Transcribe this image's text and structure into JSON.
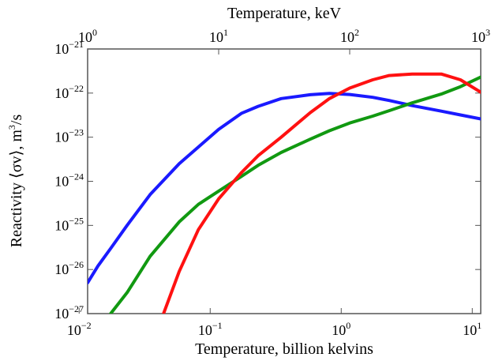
{
  "chart_data": {
    "type": "line",
    "x_top_label": "Temperature, keV",
    "x_bottom_label": "Temperature, billion kelvins",
    "ylabel_prefix": "Reactivity ⟨σv⟩, m",
    "ylabel_exp": "3",
    "ylabel_suffix": "/s",
    "x_scale": "log",
    "y_scale": "log",
    "xlim_keV": [
      1,
      1000
    ],
    "ylim": [
      1e-27,
      1e-21
    ],
    "grid": false,
    "x_top_ticks": [
      {
        "value": 1,
        "base": "10",
        "exp": "0"
      },
      {
        "value": 10,
        "base": "10",
        "exp": "1"
      },
      {
        "value": 100,
        "base": "10",
        "exp": "2"
      },
      {
        "value": 1000,
        "base": "10",
        "exp": "3"
      }
    ],
    "x_bottom_ticks": [
      {
        "value": 0.01,
        "base": "10",
        "exp": "−2"
      },
      {
        "value": 0.1,
        "base": "10",
        "exp": "−1"
      },
      {
        "value": 1,
        "base": "10",
        "exp": "0"
      },
      {
        "value": 10,
        "base": "10",
        "exp": "1"
      }
    ],
    "y_ticks": [
      {
        "value": 1e-21,
        "base": "10",
        "exp": "−21"
      },
      {
        "value": 1e-22,
        "base": "10",
        "exp": "−22"
      },
      {
        "value": 1e-23,
        "base": "10",
        "exp": "−23"
      },
      {
        "value": 1e-24,
        "base": "10",
        "exp": "−24"
      },
      {
        "value": 1e-25,
        "base": "10",
        "exp": "−25"
      },
      {
        "value": 1e-26,
        "base": "10",
        "exp": "−26"
      },
      {
        "value": 1e-27,
        "base": "10",
        "exp": "−27"
      }
    ],
    "series": [
      {
        "color": "#1a1aff",
        "x_keV": [
          1.0,
          1.2,
          1.5,
          2,
          3,
          5,
          7,
          10,
          15,
          20,
          30,
          50,
          70,
          100,
          150,
          200,
          300,
          500,
          700,
          1000
        ],
        "y": [
          5e-27,
          1.2e-26,
          3e-26,
          1e-25,
          5e-25,
          2.5e-24,
          6e-24,
          1.5e-23,
          3.5e-23,
          5e-23,
          7.5e-23,
          9.2e-23,
          9.8e-23,
          9.3e-23,
          8e-23,
          6.8e-23,
          5.2e-23,
          3.9e-23,
          3.2e-23,
          2.6e-23
        ]
      },
      {
        "color": "#119911",
        "x_keV": [
          1.5,
          2,
          3,
          5,
          7,
          10,
          15,
          20,
          30,
          50,
          70,
          100,
          150,
          200,
          300,
          500,
          700,
          1000
        ],
        "y": [
          1e-27,
          3e-27,
          2e-26,
          1.2e-25,
          3e-25,
          6e-25,
          1.3e-24,
          2.3e-24,
          4.5e-24,
          9e-24,
          1.4e-23,
          2.1e-23,
          3e-23,
          4e-23,
          6e-23,
          9.5e-23,
          1.4e-22,
          2.3e-22
        ]
      },
      {
        "color": "#ff1111",
        "x_keV": [
          3.8,
          5,
          7,
          10,
          15,
          20,
          30,
          50,
          70,
          100,
          150,
          200,
          300,
          500,
          700,
          1000
        ],
        "y": [
          1e-27,
          9e-27,
          8e-26,
          4e-25,
          1.6e-24,
          3.8e-24,
          1e-23,
          3.6e-23,
          7.5e-23,
          1.3e-22,
          2e-22,
          2.5e-22,
          2.7e-22,
          2.7e-22,
          2e-22,
          1.05e-22
        ]
      }
    ]
  }
}
